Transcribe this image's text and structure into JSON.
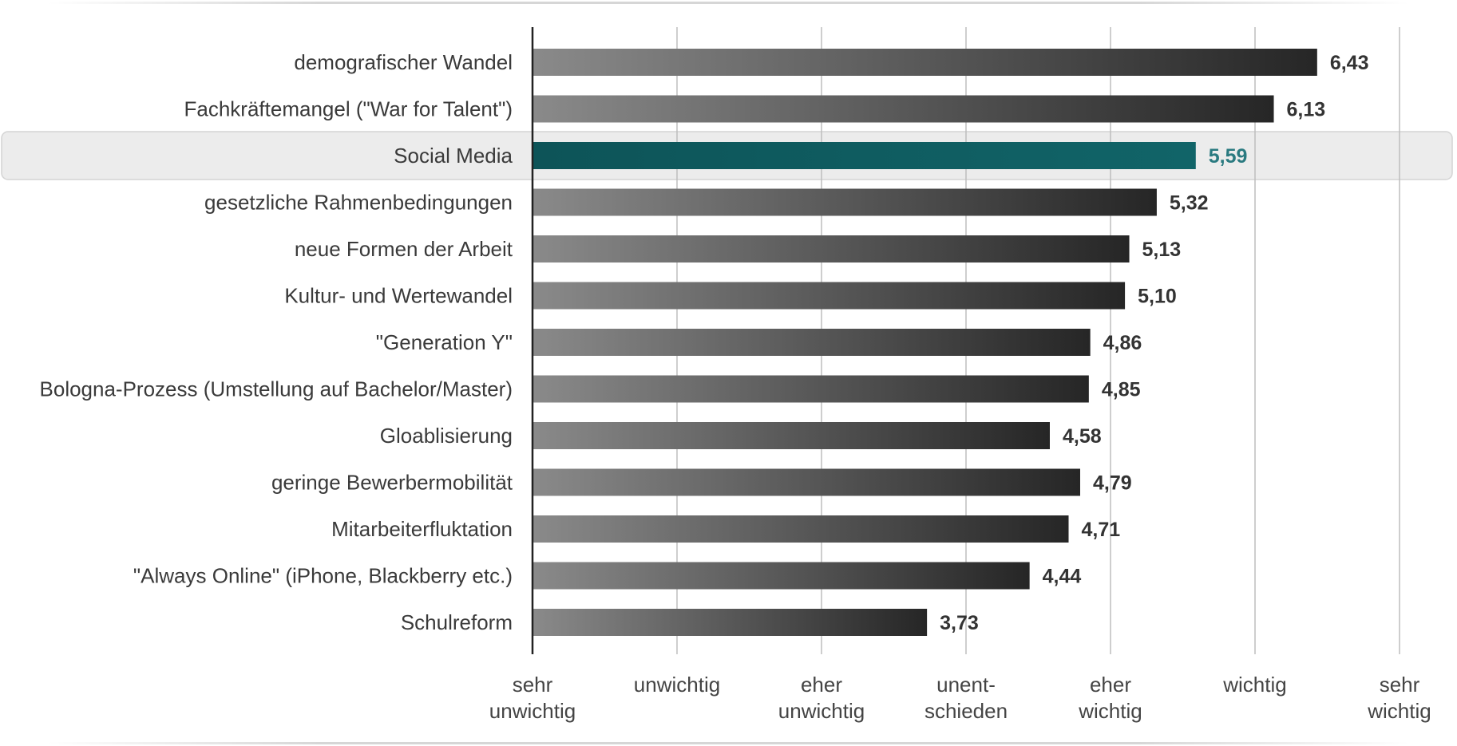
{
  "chart_data": {
    "type": "bar",
    "orientation": "horizontal",
    "title": "",
    "xlabel": "",
    "ylabel": "",
    "categories": [
      "demografischer Wandel",
      "Fachkräftemangel (\"War for Talent\")",
      "Social Media",
      "gesetzliche Rahmenbedingungen",
      "neue Formen der Arbeit",
      "Kultur- und Wertewandel",
      "\"Generation Y\"",
      "Bologna-Prozess (Umstellung auf Bachelor/Master)",
      "Gloablisierung",
      "geringe Bewerbermobilität",
      "Mitarbeiterfluktation",
      "\"Always Online\" (iPhone, Blackberry etc.)",
      "Schulreform"
    ],
    "values": [
      6.43,
      6.13,
      5.59,
      5.32,
      5.13,
      5.1,
      4.86,
      4.85,
      4.58,
      4.79,
      4.71,
      4.44,
      3.73
    ],
    "value_labels": [
      "6,43",
      "6,13",
      "5,59",
      "5,32",
      "5,13",
      "5,10",
      "4,86",
      "4,85",
      "4,58",
      "4,79",
      "4,71",
      "4,44",
      "3,73"
    ],
    "highlighted_category": "Social Media",
    "xlim": [
      1,
      7
    ],
    "x_ticks": [
      {
        "value": 1,
        "lines": [
          "sehr",
          "unwichtig"
        ]
      },
      {
        "value": 2,
        "lines": [
          "unwichtig"
        ]
      },
      {
        "value": 3,
        "lines": [
          "eher",
          "unwichtig"
        ]
      },
      {
        "value": 4,
        "lines": [
          "unent-",
          "schieden"
        ]
      },
      {
        "value": 5,
        "lines": [
          "eher",
          "wichtig"
        ]
      },
      {
        "value": 6,
        "lines": [
          "wichtig"
        ]
      },
      {
        "value": 7,
        "lines": [
          "sehr",
          "wichtig"
        ]
      }
    ],
    "grid": true,
    "legend": "none",
    "colors": {
      "bar_light": "#8a8a8a",
      "bar_dark": "#262626",
      "highlight_bar": "#0f5e62",
      "highlight_label": "#2a7a80",
      "highlight_band": "#ececec",
      "gridline": "#bdbdbd",
      "axis": "#222222"
    }
  }
}
